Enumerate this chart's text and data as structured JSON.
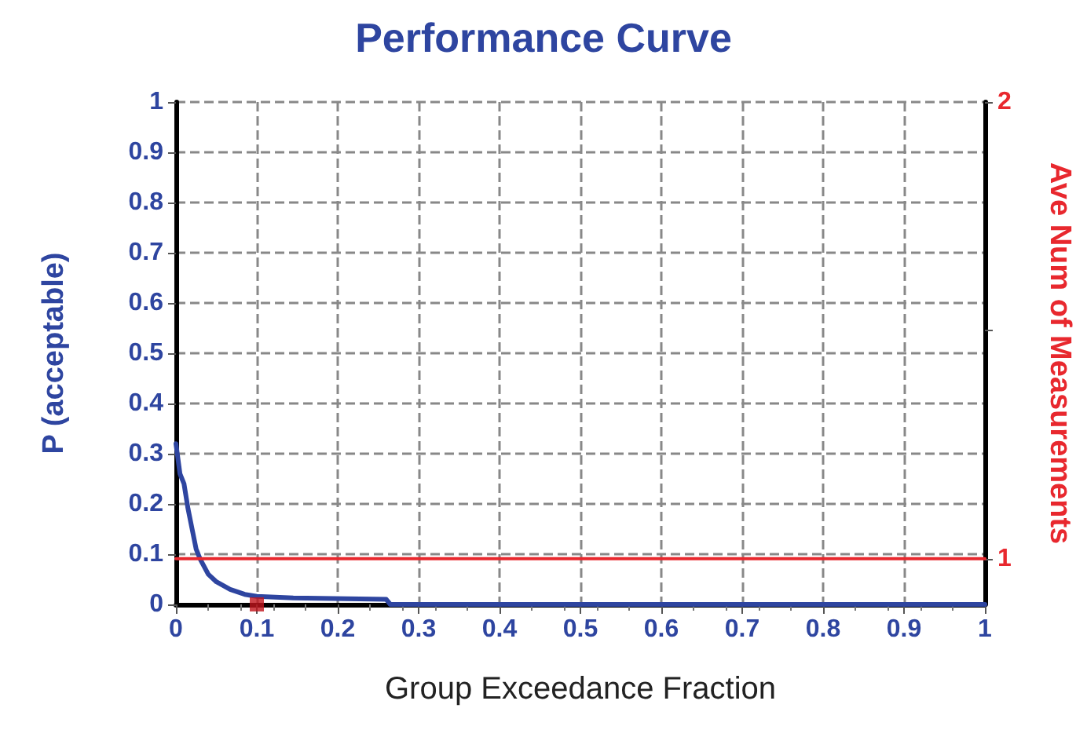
{
  "chart_data": {
    "type": "line",
    "title": "Performance Curve",
    "xlabel": "Group Exceedance Fraction",
    "ylabel": "P (acceptable)",
    "y2label": "Ave Num of Measurements",
    "series": [
      {
        "color": "#2e45a0",
        "x": [
          0,
          0.005,
          0.01,
          0.015,
          0.02,
          0.025,
          0.03,
          0.04,
          0.05,
          0.067,
          0.085,
          0.1,
          0.145,
          0.26,
          0.265,
          1
        ],
        "values": [
          0.32,
          0.26,
          0.24,
          0.19,
          0.15,
          0.11,
          0.09,
          0.06,
          0.045,
          0.03,
          0.02,
          0.016,
          0.013,
          0.01,
          0,
          0
        ]
      },
      {
        "color": "#e8282e",
        "axis": "y2",
        "x": [
          0,
          1
        ],
        "values": [
          1,
          1
        ]
      },
      {
        "type": "scatter",
        "marker": "square",
        "color": "#c0141c",
        "x": [
          0.1
        ],
        "values": [
          0
        ]
      }
    ],
    "xlim": [
      0,
      1
    ],
    "xticks": [
      0,
      0.1,
      0.2,
      0.3,
      0.4,
      0.5,
      0.6,
      0.7,
      0.8,
      0.9,
      1
    ],
    "ylim": [
      0,
      1
    ],
    "yticks": [
      0,
      0.1,
      0.2,
      0.3,
      0.4,
      0.5,
      0.6,
      0.7,
      0.8,
      0.9,
      1
    ],
    "y2lim": [
      0.9,
      2
    ],
    "y2ticks": [
      1,
      {
        "value": 1.5,
        "label": null
      },
      2
    ],
    "grid": true,
    "marker": "none"
  }
}
